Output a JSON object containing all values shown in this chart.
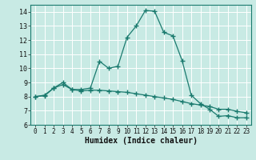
{
  "xlabel": "Humidex (Indice chaleur)",
  "xlim": [
    -0.5,
    23.5
  ],
  "ylim": [
    6,
    14.5
  ],
  "yticks": [
    6,
    7,
    8,
    9,
    10,
    11,
    12,
    13,
    14
  ],
  "xticks": [
    0,
    1,
    2,
    3,
    4,
    5,
    6,
    7,
    8,
    9,
    10,
    11,
    12,
    13,
    14,
    15,
    16,
    17,
    18,
    19,
    20,
    21,
    22,
    23
  ],
  "background_color": "#c8eae4",
  "grid_color": "#ffffff",
  "line_color": "#1a7a6e",
  "line1_x": [
    0,
    1,
    2,
    3,
    4,
    5,
    6,
    7,
    8,
    9,
    10,
    11,
    12,
    13,
    14,
    15,
    16,
    17,
    18,
    19,
    20,
    21,
    22,
    23
  ],
  "line1_y": [
    8.0,
    8.1,
    8.6,
    9.0,
    8.5,
    8.5,
    8.6,
    10.5,
    10.0,
    10.15,
    12.2,
    13.0,
    14.1,
    14.05,
    12.55,
    12.3,
    10.55,
    8.1,
    7.5,
    7.1,
    6.6,
    6.65,
    6.5,
    6.5
  ],
  "line2_x": [
    0,
    1,
    2,
    3,
    4,
    5,
    6,
    7,
    8,
    9,
    10,
    11,
    12,
    13,
    14,
    15,
    16,
    17,
    18,
    19,
    20,
    21,
    22,
    23
  ],
  "line2_y": [
    8.0,
    8.05,
    8.6,
    8.85,
    8.5,
    8.4,
    8.45,
    8.45,
    8.4,
    8.35,
    8.3,
    8.2,
    8.1,
    8.0,
    7.9,
    7.8,
    7.65,
    7.5,
    7.4,
    7.3,
    7.1,
    7.1,
    6.95,
    6.85
  ]
}
